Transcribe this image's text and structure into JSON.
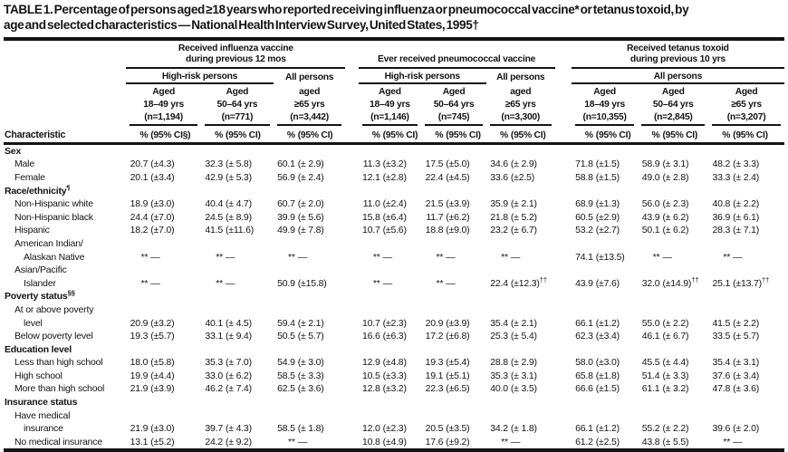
{
  "colors": {
    "ink": "#141414",
    "paper": "#ffffff"
  },
  "title": {
    "lines": [
      "TABLE 1. Percentage of persons aged ≥18 years who reported receiving influenza or pneumococcal vaccine* or tetanus toxoid, by",
      "age and selected characteristics — National Health Interview Survey, United States, 1995†"
    ]
  },
  "header": {
    "characteristic_label": "Characteristic",
    "groups": [
      {
        "lines": [
          "Received influenza vaccine",
          "during previous 12 mos"
        ],
        "subgroups": [
          {
            "label": "High-risk persons"
          },
          {
            "label": "All persons"
          }
        ],
        "columns": [
          {
            "aged": "Aged",
            "range": "18–49 yrs",
            "n": "(n=1,194)",
            "pct": "%",
            "ci": "(95% CI§)"
          },
          {
            "aged": "Aged",
            "range": "50–64 yrs",
            "n": "(n=771)",
            "pct": "%",
            "ci": "(95% CI)"
          },
          {
            "aged": "aged",
            "range": "≥65 yrs",
            "n": "(n=3,442)",
            "pct": "%",
            "ci": "(95% CI)"
          }
        ]
      },
      {
        "lines": [
          "Ever received pneumococcal vaccine"
        ],
        "subgroups": [
          {
            "label": "High-risk persons"
          },
          {
            "label": "All persons"
          }
        ],
        "columns": [
          {
            "aged": "Aged",
            "range": "18–49 yrs",
            "n": "(n=1,146)",
            "pct": "%",
            "ci": "(95% CI)"
          },
          {
            "aged": "Aged",
            "range": "50–64 yrs",
            "n": "(n=745)",
            "pct": "%",
            "ci": "(95% CI)"
          },
          {
            "aged": "aged",
            "range": "≥65 yrs",
            "n": "(n=3,300)",
            "pct": "%",
            "ci": "(95% CI)"
          }
        ]
      },
      {
        "lines": [
          "Received tetanus toxoid",
          "during previous 10 yrs"
        ],
        "subgroups": [
          {
            "label": "All persons"
          }
        ],
        "columns": [
          {
            "aged": "Aged",
            "range": "18–49 yrs",
            "n": "(n=10,355)",
            "pct": "%",
            "ci": "(95% CI)"
          },
          {
            "aged": "Aged",
            "range": "50–64 yrs",
            "n": "(n=2,845)",
            "pct": "%",
            "ci": "(95% CI)"
          },
          {
            "aged": "Aged",
            "range": "≥65 yrs",
            "n": "(n=3,207)",
            "pct": "%",
            "ci": "(95% CI)"
          }
        ]
      }
    ]
  },
  "sections": [
    {
      "label": "Sex",
      "marker": "",
      "rows": [
        {
          "label_lines": [
            "Male"
          ],
          "values": [
            [
              "20.7",
              "(±4.3)"
            ],
            [
              "32.3",
              "(± 5.8)"
            ],
            [
              "60.1",
              "(± 2.9)"
            ],
            [
              "11.3",
              "(±3.2)"
            ],
            [
              "17.5",
              "(±5.0)"
            ],
            [
              "34.6",
              "(± 2.9)"
            ],
            [
              "71.8",
              "(±1.5)"
            ],
            [
              "58.9",
              "(± 3.1)"
            ],
            [
              "48.2",
              "(± 3.3)"
            ]
          ]
        },
        {
          "label_lines": [
            "Female"
          ],
          "values": [
            [
              "20.1",
              "(±3.4)"
            ],
            [
              "42.9",
              "(± 5.3)"
            ],
            [
              "56.9",
              "(± 2.4)"
            ],
            [
              "12.1",
              "(±2.8)"
            ],
            [
              "22.4",
              "(±4.5)"
            ],
            [
              "33.6",
              "(±2.5)"
            ],
            [
              "58.8",
              "(±1.5)"
            ],
            [
              "49.0",
              "(± 2.8)"
            ],
            [
              "33.3",
              "(± 2.4)"
            ]
          ]
        }
      ]
    },
    {
      "label": "Race/ethnicity",
      "marker": "¶",
      "rows": [
        {
          "label_lines": [
            "Non-Hispanic white"
          ],
          "values": [
            [
              "18.9",
              "(±3.0)"
            ],
            [
              "40.4",
              "(± 4.7)"
            ],
            [
              "60.7",
              "(± 2.0)"
            ],
            [
              "11.0",
              "(±2.4)"
            ],
            [
              "21.5",
              "(±3.9)"
            ],
            [
              "35.9",
              "(± 2.1)"
            ],
            [
              "68.9",
              "(±1.3)"
            ],
            [
              "56.0",
              "(± 2.3)"
            ],
            [
              "40.8",
              "(± 2.2)"
            ]
          ]
        },
        {
          "label_lines": [
            "Non-Hispanic black"
          ],
          "values": [
            [
              "24.4",
              "(±7.0)"
            ],
            [
              "24.5",
              "(± 8.9)"
            ],
            [
              "39.9",
              "(± 5.6)"
            ],
            [
              "15.8",
              "(±6.4)"
            ],
            [
              "11.7",
              "(±6.2)"
            ],
            [
              "21.8",
              "(± 5.2)"
            ],
            [
              "60.5",
              "(±2.9)"
            ],
            [
              "43.9",
              "(± 6.2)"
            ],
            [
              "36.9",
              "(± 6.1)"
            ]
          ]
        },
        {
          "label_lines": [
            "Hispanic"
          ],
          "values": [
            [
              "18.2",
              "(±7.0)"
            ],
            [
              "41.5",
              "(±11.6)"
            ],
            [
              "49.9",
              "(± 7.8)"
            ],
            [
              "10.7",
              "(±5.6)"
            ],
            [
              "18.8",
              "(±9.0)"
            ],
            [
              "23.2",
              "(± 6.7)"
            ],
            [
              "53.2",
              "(±2.7)"
            ],
            [
              "50.1",
              "(± 6.2)"
            ],
            [
              "28.3",
              "(± 7.1)"
            ]
          ]
        },
        {
          "label_lines": [
            "American Indian/",
            "Alaskan Native"
          ],
          "values": [
            [
              "**",
              "—"
            ],
            [
              "**",
              "—"
            ],
            [
              "**",
              "—"
            ],
            [
              "**",
              "—"
            ],
            [
              "**",
              "—"
            ],
            [
              "**",
              "—"
            ],
            [
              "74.1",
              "(±13.5)"
            ],
            [
              "**",
              "—"
            ],
            [
              "**",
              "—"
            ]
          ]
        },
        {
          "label_lines": [
            "Asian/Pacific",
            "Islander"
          ],
          "values": [
            [
              "**",
              "—"
            ],
            [
              "**",
              "—"
            ],
            [
              "50.9",
              "(±15.8)"
            ],
            [
              "**",
              "—"
            ],
            [
              "**",
              "—"
            ],
            [
              "22.4",
              "(±12.3)",
              "††"
            ],
            [
              "43.9",
              "(±7.6)"
            ],
            [
              "32.0",
              "(±14.9)",
              "††"
            ],
            [
              "25.1",
              "(±13.7)",
              "††"
            ]
          ]
        }
      ]
    },
    {
      "label": "Poverty status",
      "marker": "§§",
      "rows": [
        {
          "label_lines": [
            "At or above poverty",
            "level"
          ],
          "values": [
            [
              "20.9",
              "(±3.2)"
            ],
            [
              "40.1",
              "(± 4.5)"
            ],
            [
              "59.4",
              "(± 2.1)"
            ],
            [
              "10.7",
              "(±2.3)"
            ],
            [
              "20.9",
              "(±3.9)"
            ],
            [
              "35.4",
              "(± 2.1)"
            ],
            [
              "66.1",
              "(±1.2)"
            ],
            [
              "55.0",
              "(± 2.2)"
            ],
            [
              "41.5",
              "(± 2.2)"
            ]
          ]
        },
        {
          "label_lines": [
            "Below poverty level"
          ],
          "values": [
            [
              "19.3",
              "(±5.7)"
            ],
            [
              "33.1",
              "(± 9.4)"
            ],
            [
              "50.5",
              "(± 5.7)"
            ],
            [
              "16.6",
              "(±6.3)"
            ],
            [
              "17.2",
              "(±6.8)"
            ],
            [
              "25.3",
              "(± 5.4)"
            ],
            [
              "62.3",
              "(±3.4)"
            ],
            [
              "46.1",
              "(± 6.7)"
            ],
            [
              "33.5",
              "(± 5.7)"
            ]
          ]
        }
      ]
    },
    {
      "label": "Education level",
      "marker": "",
      "rows": [
        {
          "label_lines": [
            "Less than high school"
          ],
          "values": [
            [
              "18.0",
              "(±5.8)"
            ],
            [
              "35.3",
              "(± 7.0)"
            ],
            [
              "54.9",
              "(± 3.0)"
            ],
            [
              "12.9",
              "(±4.8)"
            ],
            [
              "19.3",
              "(±5.4)"
            ],
            [
              "28.8",
              "(± 2.9)"
            ],
            [
              "58.0",
              "(±3.0)"
            ],
            [
              "45.5",
              "(± 4.4)"
            ],
            [
              "35.4",
              "(± 3.1)"
            ]
          ]
        },
        {
          "label_lines": [
            "High school"
          ],
          "values": [
            [
              "19.9",
              "(±4.4)"
            ],
            [
              "33.0",
              "(± 6.2)"
            ],
            [
              "58.5",
              "(± 3.3)"
            ],
            [
              "10.5",
              "(±3.3)"
            ],
            [
              "19.1",
              "(±5.1)"
            ],
            [
              "35.3",
              "(± 3.1)"
            ],
            [
              "65.8",
              "(±1.8)"
            ],
            [
              "51.4",
              "(± 3.3)"
            ],
            [
              "37.6",
              "(± 3.4)"
            ]
          ]
        },
        {
          "label_lines": [
            "More than high school"
          ],
          "values": [
            [
              "21.9",
              "(±3.9)"
            ],
            [
              "46.2",
              "(± 7.4)"
            ],
            [
              "62.5",
              "(± 3.6)"
            ],
            [
              "12.8",
              "(±3.2)"
            ],
            [
              "22.3",
              "(±6.5)"
            ],
            [
              "40.0",
              "(± 3.5)"
            ],
            [
              "66.6",
              "(±1.5)"
            ],
            [
              "61.1",
              "(± 3.2)"
            ],
            [
              "47.8",
              "(± 3.6)"
            ]
          ]
        }
      ]
    },
    {
      "label": "Insurance status",
      "marker": "",
      "rows": [
        {
          "label_lines": [
            "Have medical",
            "insurance"
          ],
          "values": [
            [
              "21.9",
              "(±3.0)"
            ],
            [
              "39.7",
              "(± 4.3)"
            ],
            [
              "58.5",
              "(± 1.8)"
            ],
            [
              "12.0",
              "(±2.3)"
            ],
            [
              "20.5",
              "(±3.5)"
            ],
            [
              "34.2",
              "(± 1.8)"
            ],
            [
              "66.1",
              "(±1.2)"
            ],
            [
              "55.2",
              "(± 2.2)"
            ],
            [
              "39.6",
              "(± 2.0)"
            ]
          ]
        },
        {
          "label_lines": [
            "No medical insurance"
          ],
          "values": [
            [
              "13.1",
              "(±5.2)"
            ],
            [
              "24.2",
              "(± 9.2)"
            ],
            [
              "**",
              "—"
            ],
            [
              "10.8",
              "(±4.9)"
            ],
            [
              "17.6",
              "(±9.2)"
            ],
            [
              "**",
              "—"
            ],
            [
              "61.2",
              "(±2.5)"
            ],
            [
              "43.8",
              "(± 5.5)"
            ],
            [
              "**",
              "—"
            ]
          ]
        }
      ]
    }
  ]
}
